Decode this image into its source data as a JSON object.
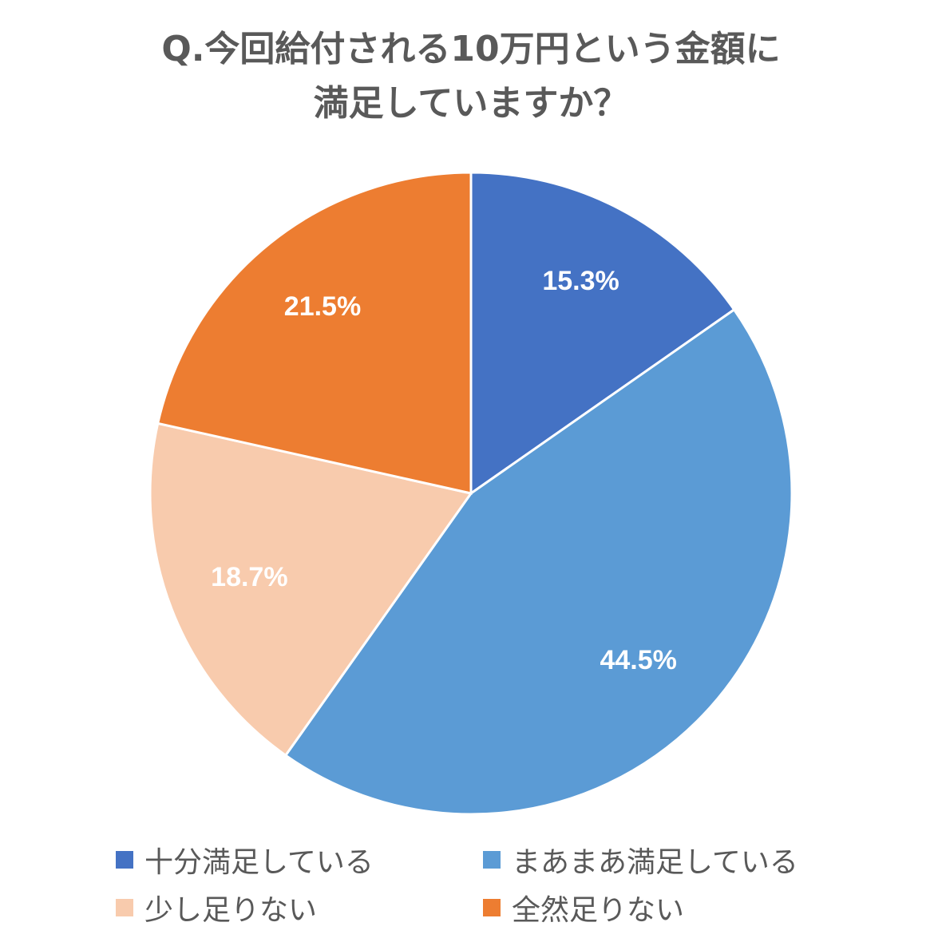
{
  "chart_data": {
    "type": "pie",
    "title_lines": [
      "Q.今回給付される10万円という金額に",
      "満足していますか？"
    ],
    "categories": [
      "十分満足している",
      "まあまあ満足している",
      "少し足りない",
      "全然足りない"
    ],
    "values": [
      15.3,
      44.5,
      18.7,
      21.5
    ],
    "labels": [
      "15.3%",
      "44.5%",
      "18.7%",
      "21.5%"
    ],
    "colors": [
      "#4472C4",
      "#5B9BD5",
      "#F8CBAD",
      "#ED7D31"
    ],
    "legend_position": "bottom"
  }
}
